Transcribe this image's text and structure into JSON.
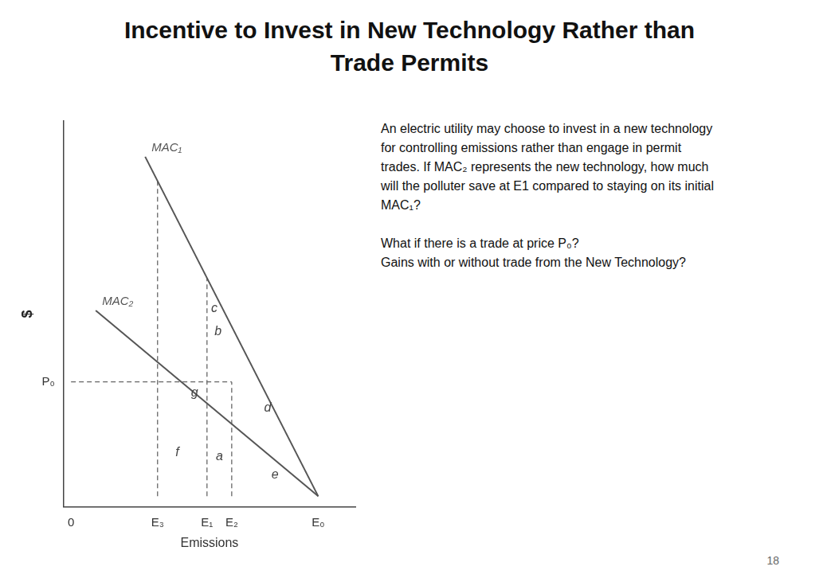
{
  "chart_data": {
    "type": "line",
    "title": [
      "Incentive to Invest in New Technology Rather than",
      "Trade Permits"
    ],
    "xlabel": "Emissions",
    "ylabel": "$",
    "xlim": [
      -0.3,
      11.5
    ],
    "ylim": [
      -0.3,
      10.5
    ],
    "xticks": [
      0,
      {
        "value": 3.5,
        "label": "E₃"
      },
      {
        "value": 5.5,
        "label": "E₁"
      },
      {
        "value": 6.5,
        "label": "E₂"
      },
      {
        "value": 10,
        "label": "E₀"
      }
    ],
    "yticks": [
      {
        "value": 3.2,
        "label": "P₀"
      }
    ],
    "grid": false,
    "series": [
      {
        "name": "MAC₁",
        "color": "#555555",
        "line_style": "solid",
        "x": [
          3.0,
          10
        ],
        "values": [
          9.5,
          0
        ]
      },
      {
        "name": "MAC₂",
        "color": "#555555",
        "line_style": "solid",
        "x": [
          1.0,
          10
        ],
        "values": [
          5.2,
          0
        ]
      },
      {
        "color": "#666666",
        "line_style": "dashed",
        "x": [
          0,
          6.5
        ],
        "values": [
          3.2,
          3.2
        ]
      },
      {
        "color": "#666666",
        "line_style": "dashed",
        "x": [
          3.5,
          3.5
        ],
        "values": [
          0,
          8.821428571428571
        ]
      },
      {
        "color": "#666666",
        "line_style": "dashed",
        "x": [
          5.5,
          5.5
        ],
        "values": [
          0,
          6.107142857142857
        ]
      },
      {
        "color": "#666666",
        "line_style": "dashed",
        "x": [
          6.5,
          6.5
        ],
        "values": [
          0,
          3.2
        ]
      }
    ],
    "annotations": [
      {
        "text": "c",
        "x": 5.8,
        "y": 5.153571428571429
      },
      {
        "text": "g",
        "x": 5.0,
        "y": 2.8
      },
      {
        "text": "b",
        "x": 5.95,
        "y": 4.503571428571428
      },
      {
        "text": "f",
        "x": 4.3,
        "y": 1.12
      },
      {
        "text": "a",
        "x": 6.0,
        "y": 1.011111111111111
      },
      {
        "text": "d",
        "x": 7.95,
        "y": 2.3702777777777775
      },
      {
        "text": "e",
        "x": 8.25,
        "y": 0.5055555555555555
      }
    ],
    "note": [
      [
        "An electric utility may choose to invest in a new technology",
        "for controlling emissions rather than engage in permit",
        "trades. If MAC₂ represents the new technology, how much",
        "will the polluter save at E1 compared to staying on its initial",
        "MAC₁?"
      ],
      [
        "What if there is a trade at price P₀?",
        "Gains with or without trade from the New Technology?"
      ]
    ],
    "page_number": "18"
  }
}
